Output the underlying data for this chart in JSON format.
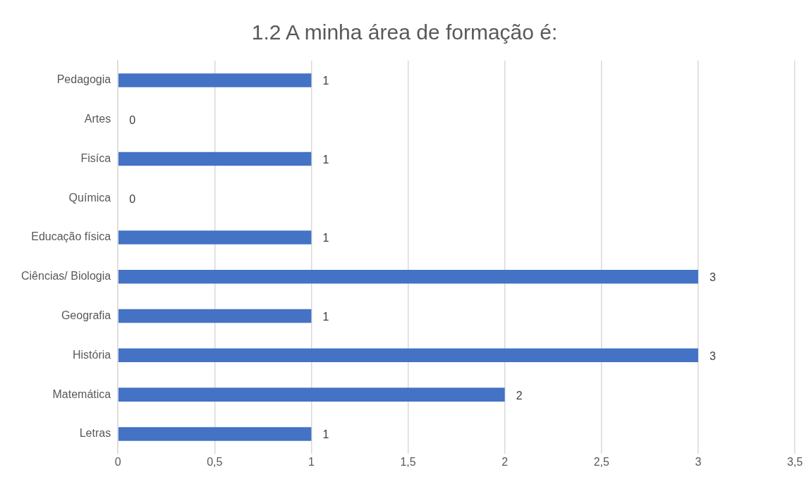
{
  "chart_data": {
    "type": "bar",
    "title": "1.2 A minha área de formação é:",
    "orientation": "horizontal",
    "categories": [
      "Pedagogia",
      "Artes",
      "Fisíca",
      "Química",
      "Educação física",
      "Ciências/ Biologia",
      "Geografia",
      "História",
      "Matemática",
      "Letras"
    ],
    "values": [
      1,
      0,
      1,
      0,
      1,
      3,
      1,
      3,
      2,
      1
    ],
    "color": "#4472c4",
    "xlim": [
      0,
      3.5
    ],
    "xticks": [
      0,
      {
        "value": 0.5,
        "label": "0,5"
      },
      1,
      {
        "value": 1.5,
        "label": "1,5"
      },
      2,
      {
        "value": 2.5,
        "label": "2,5"
      },
      3,
      {
        "value": 3.5,
        "label": "3,5"
      }
    ],
    "grid": "x",
    "data_labels": true
  }
}
